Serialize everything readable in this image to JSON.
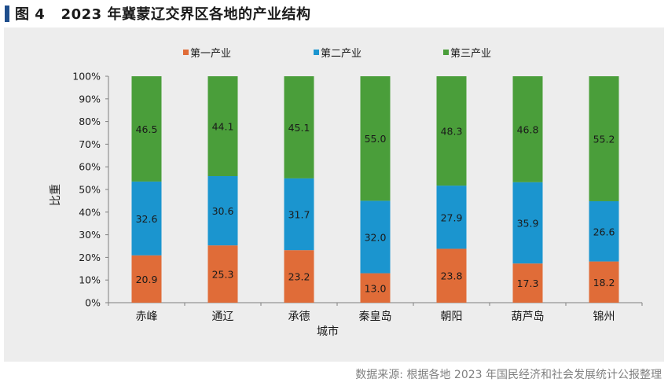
{
  "figure": {
    "title": "图 4   2023 年冀蒙辽交界区各地的产业结构",
    "source": "数据来源: 根据各地 2023 年国民经济和社会发展统计公报整理"
  },
  "chart_data": {
    "type": "bar",
    "stacked": true,
    "categories": [
      "赤峰",
      "通辽",
      "承德",
      "秦皇岛",
      "朝阳",
      "葫芦岛",
      "锦州"
    ],
    "series": [
      {
        "name": "第一产业",
        "color": "#e06c38",
        "values": [
          20.9,
          25.3,
          23.2,
          13.0,
          23.8,
          17.3,
          18.2
        ]
      },
      {
        "name": "第二产业",
        "color": "#1b95cf",
        "values": [
          32.6,
          30.6,
          31.7,
          32.0,
          27.9,
          35.9,
          26.6
        ]
      },
      {
        "name": "第三产业",
        "color": "#4a9e3a",
        "values": [
          46.5,
          44.1,
          45.1,
          55.0,
          48.3,
          46.8,
          55.2
        ]
      }
    ],
    "value_labels": [
      [
        "20.9",
        "25.3",
        "23.2",
        "13.0",
        "23.8",
        "17.3",
        "18.2"
      ],
      [
        "32.6",
        "30.6",
        "31.7",
        "32.0",
        "27.9",
        "35.9",
        "26.6"
      ],
      [
        "46.5",
        "44.1",
        "45.1",
        "55.0",
        "48.3",
        "46.8",
        "55.2"
      ]
    ],
    "xlabel": "城市",
    "ylabel": "比重",
    "ylim": [
      0,
      100
    ],
    "yticks": [
      "0%",
      "10%",
      "20%",
      "30%",
      "40%",
      "50%",
      "60%",
      "70%",
      "80%",
      "90%",
      "100%"
    ],
    "legend_position": "top",
    "grid": false
  }
}
